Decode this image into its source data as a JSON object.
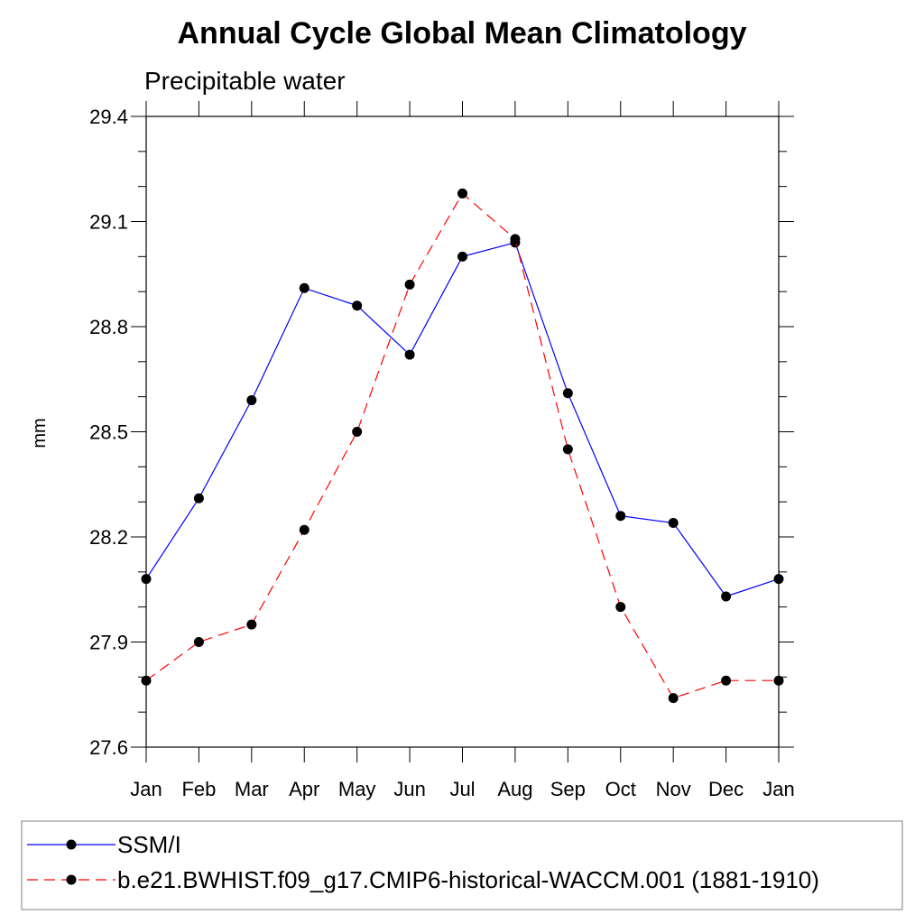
{
  "chart_data": {
    "type": "line",
    "title": "Annual Cycle Global Mean Climatology",
    "subtitle": "Precipitable water",
    "ylabel": "mm",
    "xlabel": "",
    "categories": [
      "Jan",
      "Feb",
      "Mar",
      "Apr",
      "May",
      "Jun",
      "Jul",
      "Aug",
      "Sep",
      "Oct",
      "Nov",
      "Dec",
      "Jan"
    ],
    "ylim": [
      27.6,
      29.4
    ],
    "yticks": [
      "27.6",
      "27.9",
      "28.2",
      "28.5",
      "28.8",
      "29.1",
      "29.4"
    ],
    "grid": false,
    "legend_position": "bottom",
    "series": [
      {
        "name": "SSM/I",
        "color": "#0000ff",
        "line_style": "solid",
        "marker": "filled-circle",
        "values": [
          28.08,
          28.31,
          28.59,
          28.91,
          28.86,
          28.72,
          29.0,
          29.04,
          28.61,
          28.26,
          28.24,
          28.03,
          28.08
        ]
      },
      {
        "name": "b.e21.BWHIST.f09_g17.CMIP6-historical-WACCM.001 (1881-1910)",
        "color": "#ff0000",
        "line_style": "dashed",
        "marker": "filled-circle",
        "values": [
          27.79,
          27.9,
          27.95,
          28.22,
          28.5,
          28.92,
          29.18,
          29.05,
          28.45,
          28.0,
          27.74,
          27.79,
          27.79
        ]
      }
    ]
  }
}
